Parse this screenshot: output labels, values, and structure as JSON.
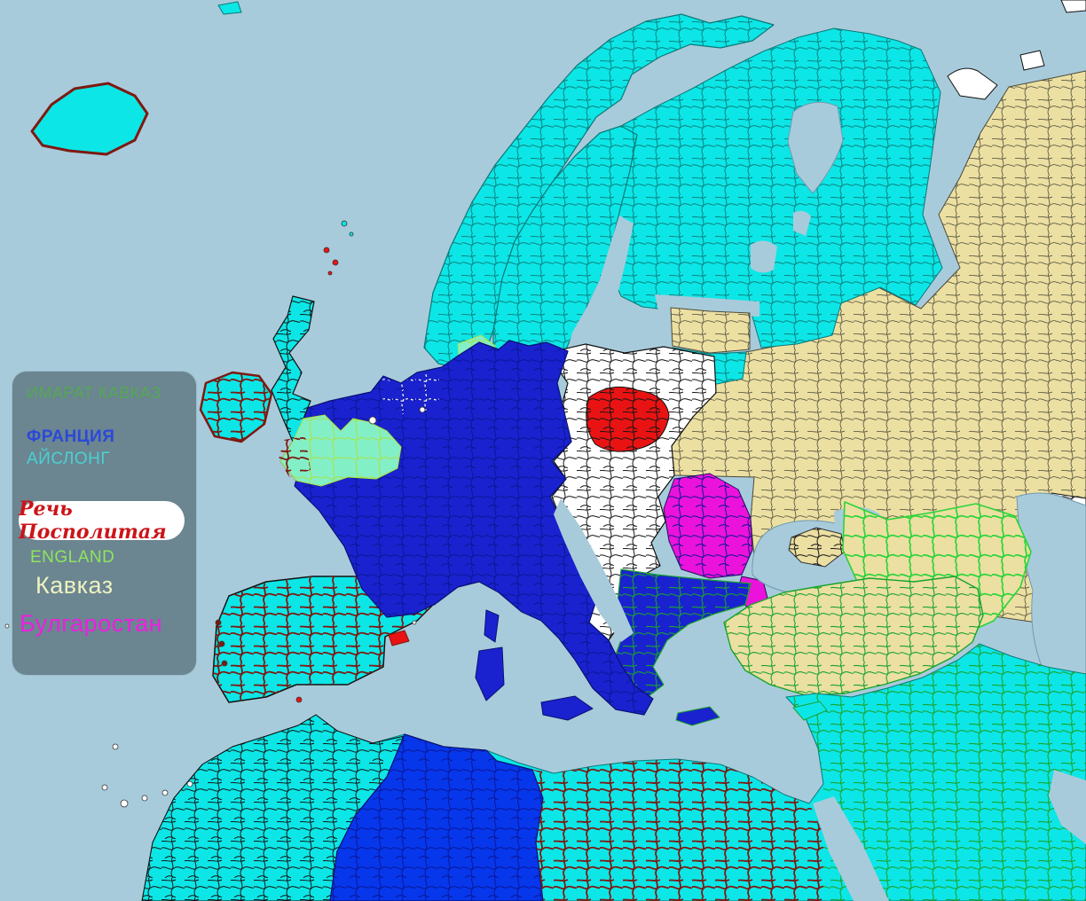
{
  "legend": {
    "background": "#6b8591",
    "pill_background": "#ffffff",
    "items": [
      {
        "label": "ИМАРАТ КАВКАЗ",
        "color": "#53a853",
        "pill": false
      },
      {
        "label": "ФРАНЦИЯ",
        "color": "#2b49d8",
        "pill": false
      },
      {
        "label": "АЙСЛОНГ",
        "color": "#49d2d2",
        "pill": false
      },
      {
        "label": "Речь Посполитая",
        "color": "#cc1419",
        "pill": true
      },
      {
        "label": "ENGLAND",
        "color": "#8fe55e",
        "pill": false
      },
      {
        "label": "Кавказ",
        "color": "#eef2c0",
        "pill": false
      },
      {
        "label": "Булгаростан",
        "color": "#ee1ee0",
        "pill": false
      }
    ]
  },
  "palette": {
    "sea": "#a8cbdb",
    "cyan": "#0de6e6",
    "pale_green": "#83efc6",
    "royal_blue": "#1a22cf",
    "bright_blue": "#0737eb",
    "tan": "#ecdfa2",
    "region_white": "#ffffff",
    "red": "#e91313",
    "magenta": "#eb13db"
  }
}
